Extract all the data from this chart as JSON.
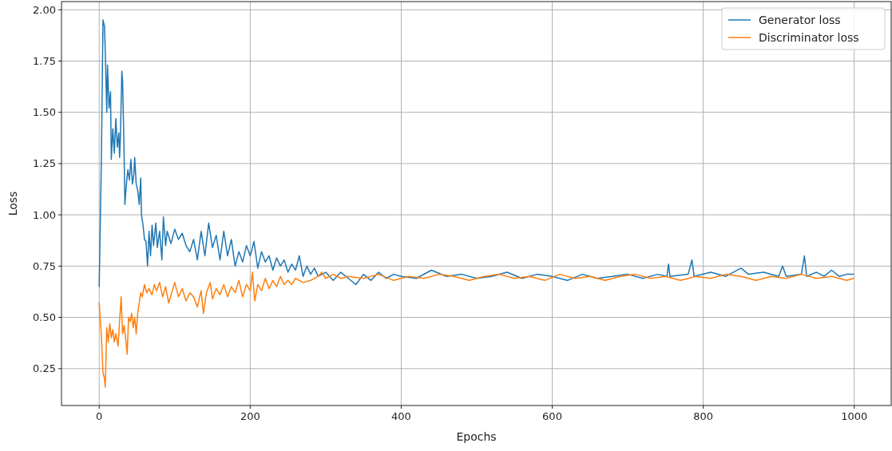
{
  "chart_data": {
    "type": "line",
    "xlabel": "Epochs",
    "ylabel": "Loss",
    "xlim": [
      -49.95,
      1048.95
    ],
    "ylim": [
      0.07,
      2.04
    ],
    "xticks": [
      0,
      200,
      400,
      600,
      800,
      1000
    ],
    "yticks": [
      {
        "value": 0.25,
        "label": "0.25"
      },
      {
        "value": 0.5,
        "label": "0.50"
      },
      {
        "value": 0.75,
        "label": "0.75"
      },
      {
        "value": 1.0,
        "label": "1.00"
      },
      {
        "value": 1.25,
        "label": "1.25"
      },
      {
        "value": 1.5,
        "label": "1.50"
      },
      {
        "value": 1.75,
        "label": "1.75"
      },
      {
        "value": 2.0,
        "label": "2.00"
      }
    ],
    "grid": true,
    "legend": "top right",
    "marker": "none",
    "line_style": "solid",
    "series": [
      {
        "name": "Generator loss",
        "color": "#1f77b4",
        "x": [
          0,
          3,
          5,
          7,
          8,
          10,
          11,
          13,
          15,
          16,
          18,
          20,
          22,
          24,
          26,
          27,
          28,
          30,
          31,
          33,
          34,
          36,
          38,
          40,
          42,
          44,
          46,
          47,
          49,
          51,
          53,
          55,
          56,
          58,
          60,
          62,
          64,
          66,
          68,
          70,
          72,
          75,
          77,
          80,
          83,
          85,
          88,
          90,
          95,
          100,
          105,
          110,
          115,
          120,
          125,
          130,
          135,
          140,
          145,
          150,
          155,
          160,
          165,
          170,
          175,
          180,
          185,
          190,
          195,
          200,
          205,
          210,
          215,
          220,
          225,
          230,
          235,
          240,
          245,
          250,
          255,
          260,
          265,
          270,
          275,
          280,
          285,
          290,
          300,
          310,
          320,
          330,
          340,
          350,
          360,
          370,
          380,
          390,
          400,
          420,
          440,
          460,
          480,
          500,
          520,
          540,
          560,
          580,
          600,
          620,
          640,
          660,
          680,
          700,
          720,
          740,
          752,
          754,
          756,
          780,
          785,
          788,
          810,
          830,
          850,
          860,
          880,
          900,
          905,
          910,
          930,
          934,
          937,
          950,
          960,
          970,
          980,
          990,
          999
        ],
        "values": [
          0.65,
          1.3,
          1.95,
          1.92,
          1.8,
          1.5,
          1.73,
          1.52,
          1.6,
          1.27,
          1.42,
          1.3,
          1.47,
          1.33,
          1.4,
          1.28,
          1.37,
          1.7,
          1.65,
          1.3,
          1.05,
          1.15,
          1.22,
          1.17,
          1.27,
          1.15,
          1.2,
          1.28,
          1.15,
          1.12,
          1.05,
          1.18,
          1.0,
          0.95,
          0.88,
          0.87,
          0.75,
          0.92,
          0.8,
          0.95,
          0.85,
          0.96,
          0.84,
          0.92,
          0.78,
          0.99,
          0.85,
          0.92,
          0.86,
          0.93,
          0.88,
          0.91,
          0.85,
          0.82,
          0.88,
          0.78,
          0.92,
          0.8,
          0.96,
          0.84,
          0.9,
          0.78,
          0.92,
          0.8,
          0.88,
          0.75,
          0.82,
          0.77,
          0.85,
          0.8,
          0.87,
          0.74,
          0.82,
          0.77,
          0.8,
          0.73,
          0.79,
          0.75,
          0.78,
          0.72,
          0.76,
          0.73,
          0.8,
          0.7,
          0.75,
          0.71,
          0.74,
          0.7,
          0.72,
          0.68,
          0.72,
          0.69,
          0.66,
          0.71,
          0.68,
          0.72,
          0.69,
          0.71,
          0.7,
          0.69,
          0.73,
          0.7,
          0.71,
          0.69,
          0.7,
          0.72,
          0.69,
          0.71,
          0.7,
          0.68,
          0.71,
          0.69,
          0.7,
          0.71,
          0.69,
          0.71,
          0.7,
          0.76,
          0.7,
          0.71,
          0.78,
          0.7,
          0.72,
          0.7,
          0.74,
          0.71,
          0.72,
          0.7,
          0.75,
          0.7,
          0.71,
          0.8,
          0.7,
          0.72,
          0.7,
          0.73,
          0.7,
          0.71,
          0.71
        ]
      },
      {
        "name": "Discriminator loss",
        "color": "#ff7f0e",
        "x": [
          0,
          3,
          5,
          7,
          8,
          10,
          12,
          14,
          16,
          18,
          20,
          22,
          25,
          27,
          29,
          31,
          33,
          35,
          37,
          39,
          41,
          43,
          45,
          47,
          49,
          51,
          53,
          55,
          57,
          60,
          63,
          66,
          70,
          73,
          76,
          80,
          84,
          88,
          92,
          96,
          100,
          105,
          110,
          115,
          120,
          125,
          130,
          135,
          138,
          142,
          147,
          150,
          155,
          160,
          165,
          170,
          175,
          180,
          185,
          190,
          195,
          200,
          203,
          206,
          210,
          215,
          220,
          225,
          230,
          235,
          240,
          245,
          250,
          255,
          260,
          270,
          280,
          290,
          295,
          300,
          310,
          320,
          330,
          350,
          370,
          390,
          410,
          430,
          450,
          470,
          490,
          510,
          530,
          550,
          570,
          590,
          610,
          630,
          650,
          670,
          690,
          710,
          730,
          750,
          770,
          790,
          810,
          830,
          850,
          870,
          890,
          910,
          930,
          950,
          970,
          990,
          999
        ],
        "values": [
          0.57,
          0.4,
          0.23,
          0.2,
          0.16,
          0.45,
          0.38,
          0.47,
          0.4,
          0.44,
          0.38,
          0.42,
          0.36,
          0.48,
          0.6,
          0.42,
          0.46,
          0.4,
          0.32,
          0.5,
          0.48,
          0.52,
          0.45,
          0.5,
          0.42,
          0.52,
          0.57,
          0.62,
          0.6,
          0.66,
          0.62,
          0.64,
          0.61,
          0.66,
          0.63,
          0.67,
          0.6,
          0.65,
          0.57,
          0.62,
          0.67,
          0.6,
          0.64,
          0.58,
          0.62,
          0.6,
          0.55,
          0.63,
          0.52,
          0.62,
          0.67,
          0.59,
          0.64,
          0.61,
          0.66,
          0.6,
          0.65,
          0.62,
          0.68,
          0.6,
          0.66,
          0.63,
          0.72,
          0.58,
          0.66,
          0.63,
          0.69,
          0.64,
          0.68,
          0.65,
          0.7,
          0.66,
          0.68,
          0.66,
          0.69,
          0.67,
          0.68,
          0.7,
          0.72,
          0.69,
          0.71,
          0.69,
          0.7,
          0.69,
          0.71,
          0.68,
          0.7,
          0.69,
          0.71,
          0.7,
          0.68,
          0.7,
          0.71,
          0.69,
          0.7,
          0.68,
          0.71,
          0.69,
          0.7,
          0.68,
          0.7,
          0.71,
          0.69,
          0.7,
          0.68,
          0.7,
          0.69,
          0.71,
          0.7,
          0.68,
          0.7,
          0.69,
          0.71,
          0.69,
          0.7,
          0.68,
          0.69
        ]
      }
    ]
  }
}
